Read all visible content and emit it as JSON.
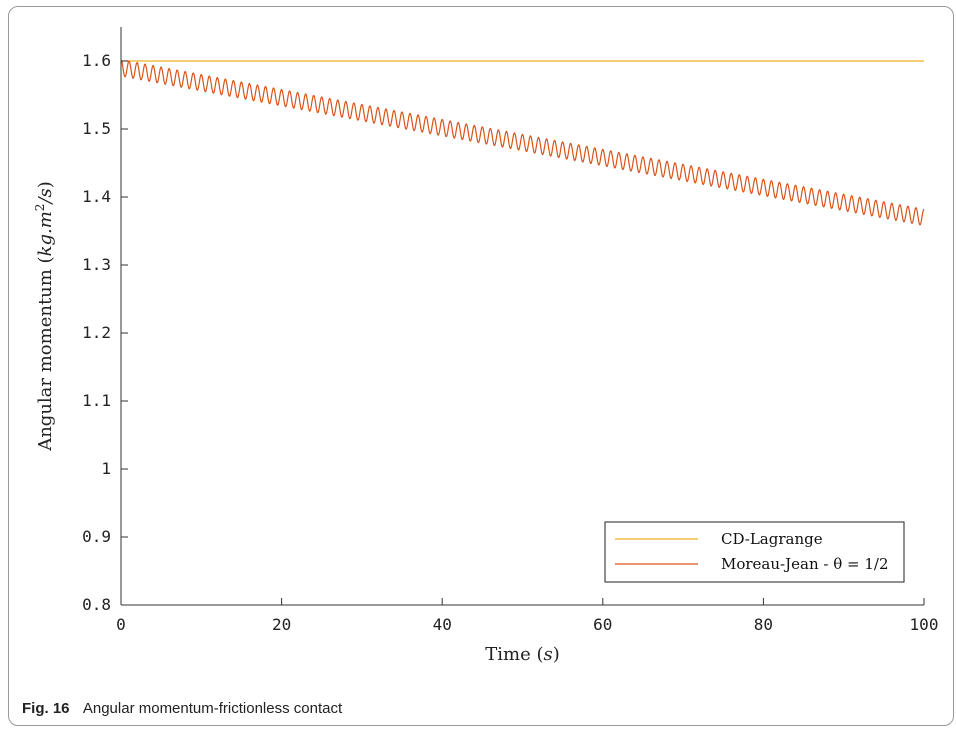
{
  "caption": {
    "figure_label": "Fig. 16",
    "text": "Angular momentum-frictionless contact"
  },
  "chart_data": {
    "type": "line",
    "xlabel": "Time (s)",
    "ylabel": "Angular momentum (kg.m²/s)",
    "xlim": [
      0,
      100
    ],
    "ylim": [
      0.8,
      1.65
    ],
    "xticks": [
      0,
      20,
      40,
      60,
      80,
      100
    ],
    "yticks": [
      0.8,
      0.9,
      1,
      1.1,
      1.2,
      1.3,
      1.4,
      1.5,
      1.6
    ],
    "xtick_labels": [
      "0",
      "20",
      "40",
      "60",
      "80",
      "100"
    ],
    "ytick_labels": [
      "0.8",
      "0.9",
      "1",
      "1.1",
      "1.2",
      "1.3",
      "1.4",
      "1.5",
      "1.6"
    ],
    "grid": false,
    "legend_position": "bottom-right",
    "series": [
      {
        "name": "CD-Lagrange",
        "color": "#EDB120",
        "x": [
          0,
          100
        ],
        "y": [
          1.6,
          1.6
        ]
      },
      {
        "name": "Moreau-Jean - θ = 1/2",
        "color": "#D95319",
        "description_values": {
          "start_mean": 1.59,
          "end_mean": 1.37,
          "oscillation_amplitude": 0.012,
          "oscillation_period": 1.0,
          "x_start": 0,
          "x_end": 100
        },
        "x": [
          0,
          10,
          20,
          30,
          40,
          50,
          60,
          70,
          80,
          90,
          100
        ],
        "y": [
          1.59,
          1.568,
          1.546,
          1.524,
          1.502,
          1.48,
          1.458,
          1.436,
          1.414,
          1.392,
          1.37
        ]
      }
    ]
  }
}
